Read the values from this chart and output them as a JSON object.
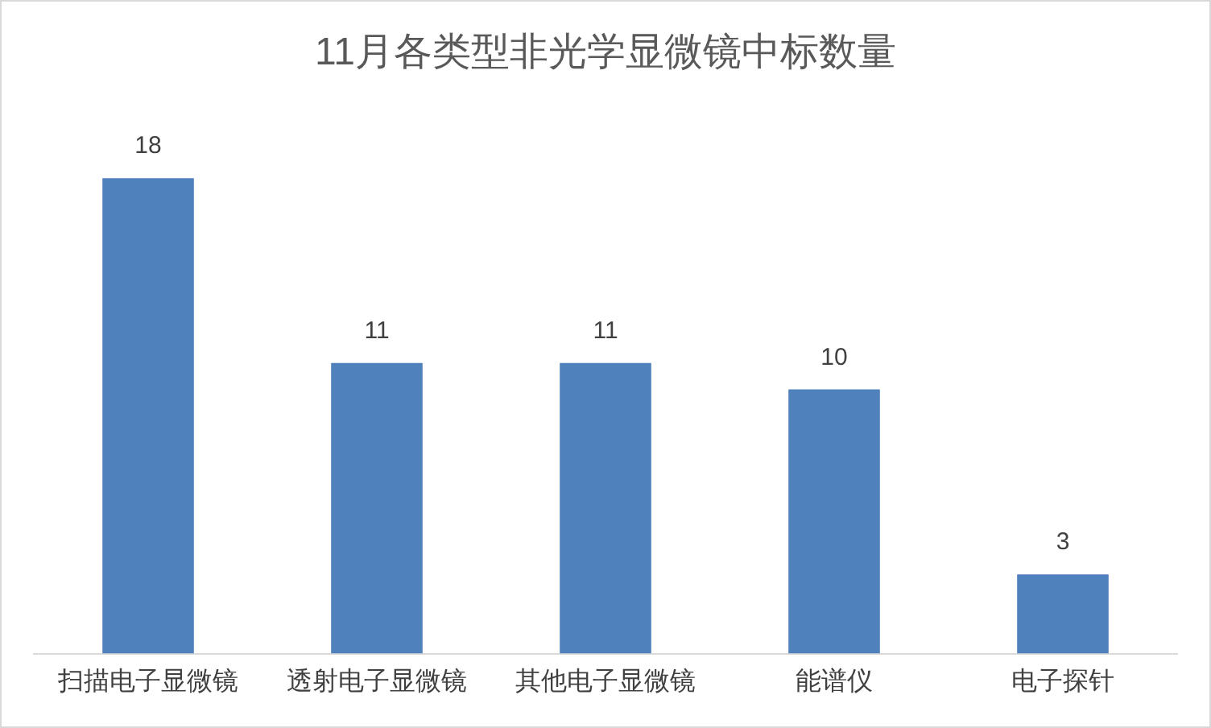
{
  "chart_data": {
    "type": "bar",
    "title": "11月各类型非光学显微镜中标数量",
    "categories": [
      "扫描电子显微镜",
      "透射电子显微镜",
      "其他电子显微镜",
      "能谱仪",
      "电子探针"
    ],
    "values": [
      18,
      11,
      11,
      10,
      3
    ],
    "color": "#4f81bd",
    "data_labels": true,
    "grid": false,
    "legend": false
  }
}
